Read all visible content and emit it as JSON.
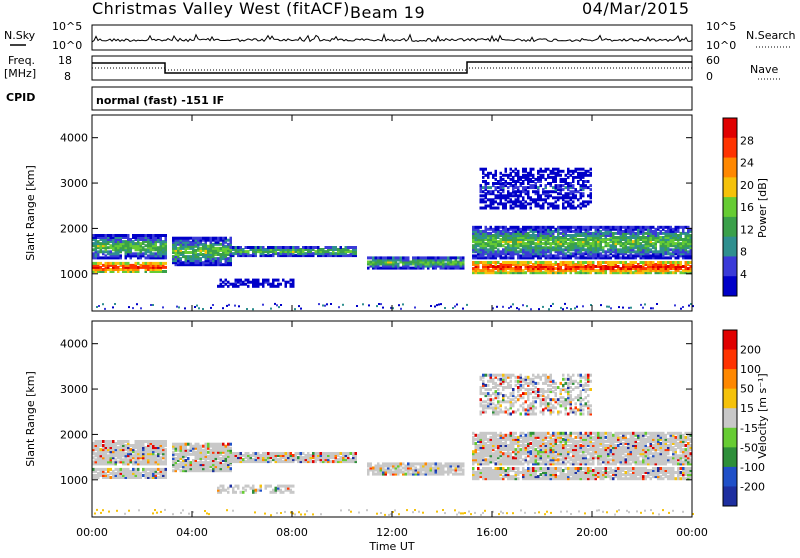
{
  "header": {
    "station": "Christmas Valley West (fitACF)",
    "beam": "Beam 19",
    "date": "04/Mar/2015"
  },
  "top_panels": {
    "nsky_label": "N.Sky",
    "nsky_ticks": [
      "10^5",
      "10^0"
    ],
    "nsearch_label": "N.Search",
    "nsearch_ticks": [
      "10^5",
      "10^0"
    ],
    "freq_label_1": "Freq.",
    "freq_label_2": "[MHz]",
    "freq_ticks": [
      "18",
      "8"
    ],
    "nave_label": "Nave",
    "nave_ticks": [
      "60",
      "0"
    ],
    "cpid_label": "CPID",
    "cpid_value": "normal (fast) -151 IF"
  },
  "chart_data": [
    {
      "type": "heatmap",
      "name": "power",
      "ylabel": "Slant Range [km]",
      "yticks": [
        "4000",
        "3000",
        "2000",
        "1000"
      ],
      "ylim": [
        180,
        4500
      ],
      "colorbar_label": "Power [dB]",
      "colorbar_ticks": [
        "28",
        "24",
        "20",
        "16",
        "12",
        "8",
        "4"
      ],
      "colors": [
        "#0000c8",
        "#3a3ad8",
        "#2f8f8f",
        "#3aa04a",
        "#66cc33",
        "#f5c20a",
        "#ff8800",
        "#ff3300",
        "#e00000"
      ],
      "regions": [
        {
          "t0": 0,
          "t1": 3,
          "r_center": 1150,
          "r_width": 200,
          "level": "high"
        },
        {
          "t0": 0,
          "t1": 3,
          "r_center": 1600,
          "r_width": 500,
          "level": "medium"
        },
        {
          "t0": 3.2,
          "t1": 5.5,
          "r_center": 1500,
          "r_width": 600,
          "level": "medium"
        },
        {
          "t0": 5.5,
          "t1": 10.5,
          "r_center": 1500,
          "r_width": 200,
          "level": "medium"
        },
        {
          "t0": 5,
          "t1": 8,
          "r_center": 800,
          "r_width": 150,
          "level": "low"
        },
        {
          "t0": 11,
          "t1": 14.8,
          "r_center": 1250,
          "r_width": 250,
          "level": "medium"
        },
        {
          "t0": 15.2,
          "t1": 24,
          "r_center": 1150,
          "r_width": 250,
          "level": "high"
        },
        {
          "t0": 15.2,
          "t1": 24,
          "r_center": 1700,
          "r_width": 700,
          "level": "medium"
        },
        {
          "t0": 15.5,
          "t1": 20,
          "r_center": 2900,
          "r_width": 900,
          "level": "low"
        }
      ]
    },
    {
      "type": "heatmap",
      "name": "velocity",
      "ylabel": "Slant Range [km]",
      "yticks": [
        "4000",
        "3000",
        "2000",
        "1000"
      ],
      "ylim": [
        180,
        4500
      ],
      "colorbar_label": "Velocity [m s⁻¹]",
      "colorbar_ticks": [
        "200",
        "100",
        "50",
        "15",
        "-15",
        "-50",
        "-100",
        "-200"
      ],
      "colors": [
        "#1e2fa0",
        "#2050c8",
        "#2e8f3a",
        "#66cc33",
        "#c8c8c8",
        "#f5c20a",
        "#ff8800",
        "#ff3300",
        "#e00000"
      ],
      "xlabel": "Time UT",
      "xticks": [
        "00:00",
        "04:00",
        "08:00",
        "12:00",
        "16:00",
        "20:00",
        "00:00"
      ],
      "xlim": [
        0,
        24
      ]
    }
  ]
}
